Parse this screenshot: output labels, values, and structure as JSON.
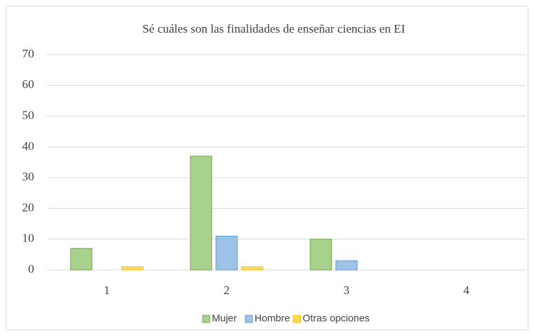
{
  "chart_data": {
    "type": "bar",
    "title": "Sé cuáles son las finalidades de enseñar ciencias en EI",
    "categories": [
      "1",
      "2",
      "3",
      "4"
    ],
    "series": [
      {
        "name": "Mujer",
        "color": "#a9d18e",
        "values": [
          7,
          37,
          10,
          0
        ]
      },
      {
        "name": "Hombre",
        "color": "#9dc3e6",
        "values": [
          0,
          11,
          3,
          0
        ]
      },
      {
        "name": "Otras opciones",
        "color": "#ffd966",
        "values": [
          1,
          1,
          0,
          0
        ]
      }
    ],
    "ylim": [
      0,
      70
    ],
    "yticks": [
      0,
      10,
      20,
      30,
      40,
      50,
      60,
      70
    ],
    "grid": true,
    "legend": "bottom"
  }
}
